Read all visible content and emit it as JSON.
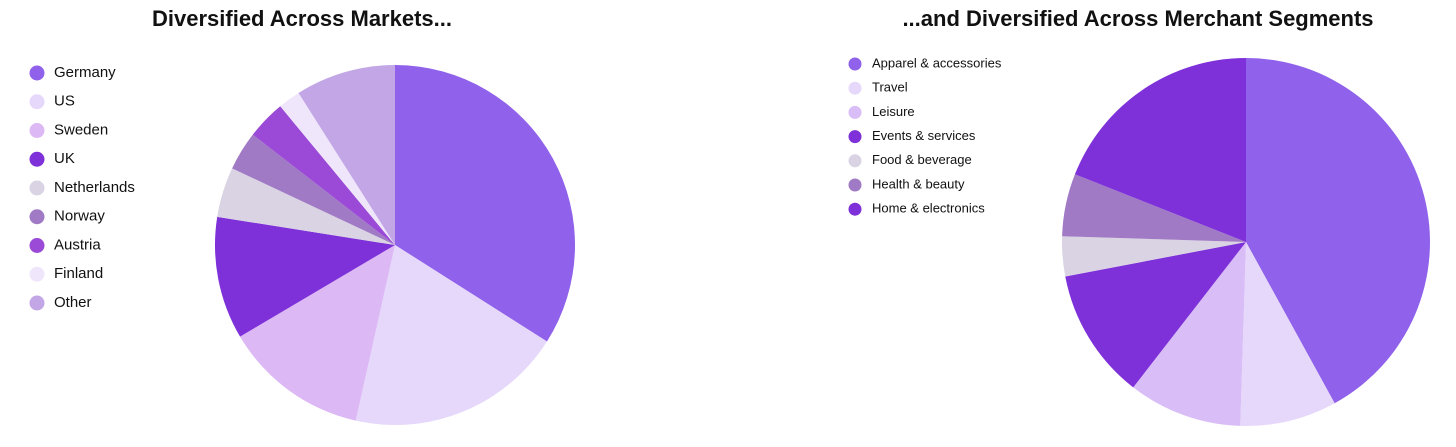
{
  "chart_data": [
    {
      "type": "pie",
      "title": "Diversified Across Markets...",
      "categories": [
        "Germany",
        "US",
        "Sweden",
        "UK",
        "Netherlands",
        "Norway",
        "Austria",
        "Finland",
        "Other"
      ],
      "values": [
        34,
        19.5,
        13,
        11,
        4.5,
        3.5,
        3.5,
        2,
        9
      ],
      "colors": [
        "#9061ea",
        "#e6d8fb",
        "#dcb8f5",
        "#7e30d9",
        "#d9d3e3",
        "#a07ac4",
        "#9a4ad6",
        "#efe6fb",
        "#c2a6e6"
      ],
      "legend": "left"
    },
    {
      "type": "pie",
      "title": "...and Diversified Across Merchant Segments",
      "categories": [
        "Apparel & accessories",
        "Travel",
        "Leisure",
        "Events & services",
        "Food & beverage",
        "Health & beauty",
        "Home & electronics"
      ],
      "values": [
        42,
        8.5,
        10,
        11.5,
        3.5,
        5.5,
        19
      ],
      "colors": [
        "#9061ea",
        "#e6d8fb",
        "#d9bdf7",
        "#7e30d9",
        "#d9d3e3",
        "#a07ac4",
        "#7e30d9"
      ],
      "legend": "left"
    }
  ]
}
